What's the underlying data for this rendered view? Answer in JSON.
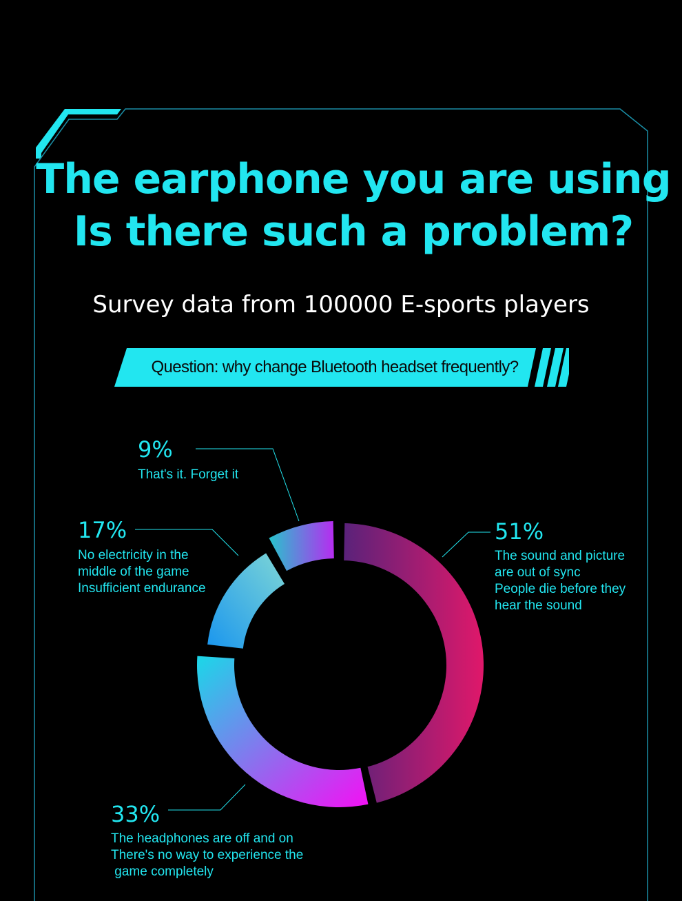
{
  "header": {
    "title_line1": "The earphone you are using",
    "title_line2": "Is there such a problem?",
    "subtitle": "Survey data from 100000 E-sports players",
    "question": "Question: why change Bluetooth headset frequently?"
  },
  "colors": {
    "background": "#000000",
    "accent_cyan": "#22e6f0",
    "frame_line": "#1a8ea6",
    "banner": "#22e6f0"
  },
  "chart_data": {
    "type": "pie",
    "style": "donut",
    "categories": [
      "The sound and picture are out of sync People die before they hear the sound",
      "The headphones are off and on There's no way to experience the game completely",
      "No electricity in the middle of the game Insufficient endurance",
      "That's it. Forget it"
    ],
    "values": [
      51,
      33,
      17,
      9
    ],
    "labels": [
      {
        "pct": "51%",
        "lines": [
          "The sound and picture",
          "are out of sync",
          "People die before they",
          "hear the sound"
        ],
        "gradient": [
          "#5a227a",
          "#e0186a"
        ]
      },
      {
        "pct": "33%",
        "lines": [
          "The headphones are off and on",
          "There's no way to experience the",
          " game completely"
        ],
        "gradient": [
          "#1ad8e8",
          "#f410f4"
        ]
      },
      {
        "pct": "17%",
        "lines": [
          "No electricity in the",
          "middle of the game",
          "Insufficient endurance"
        ],
        "gradient": [
          "#1a96ee",
          "#7ed6d6"
        ]
      },
      {
        "pct": "9%",
        "lines": [
          "That's it. Forget it"
        ],
        "gradient": [
          "#27c4cc",
          "#b62cf0"
        ]
      }
    ]
  }
}
